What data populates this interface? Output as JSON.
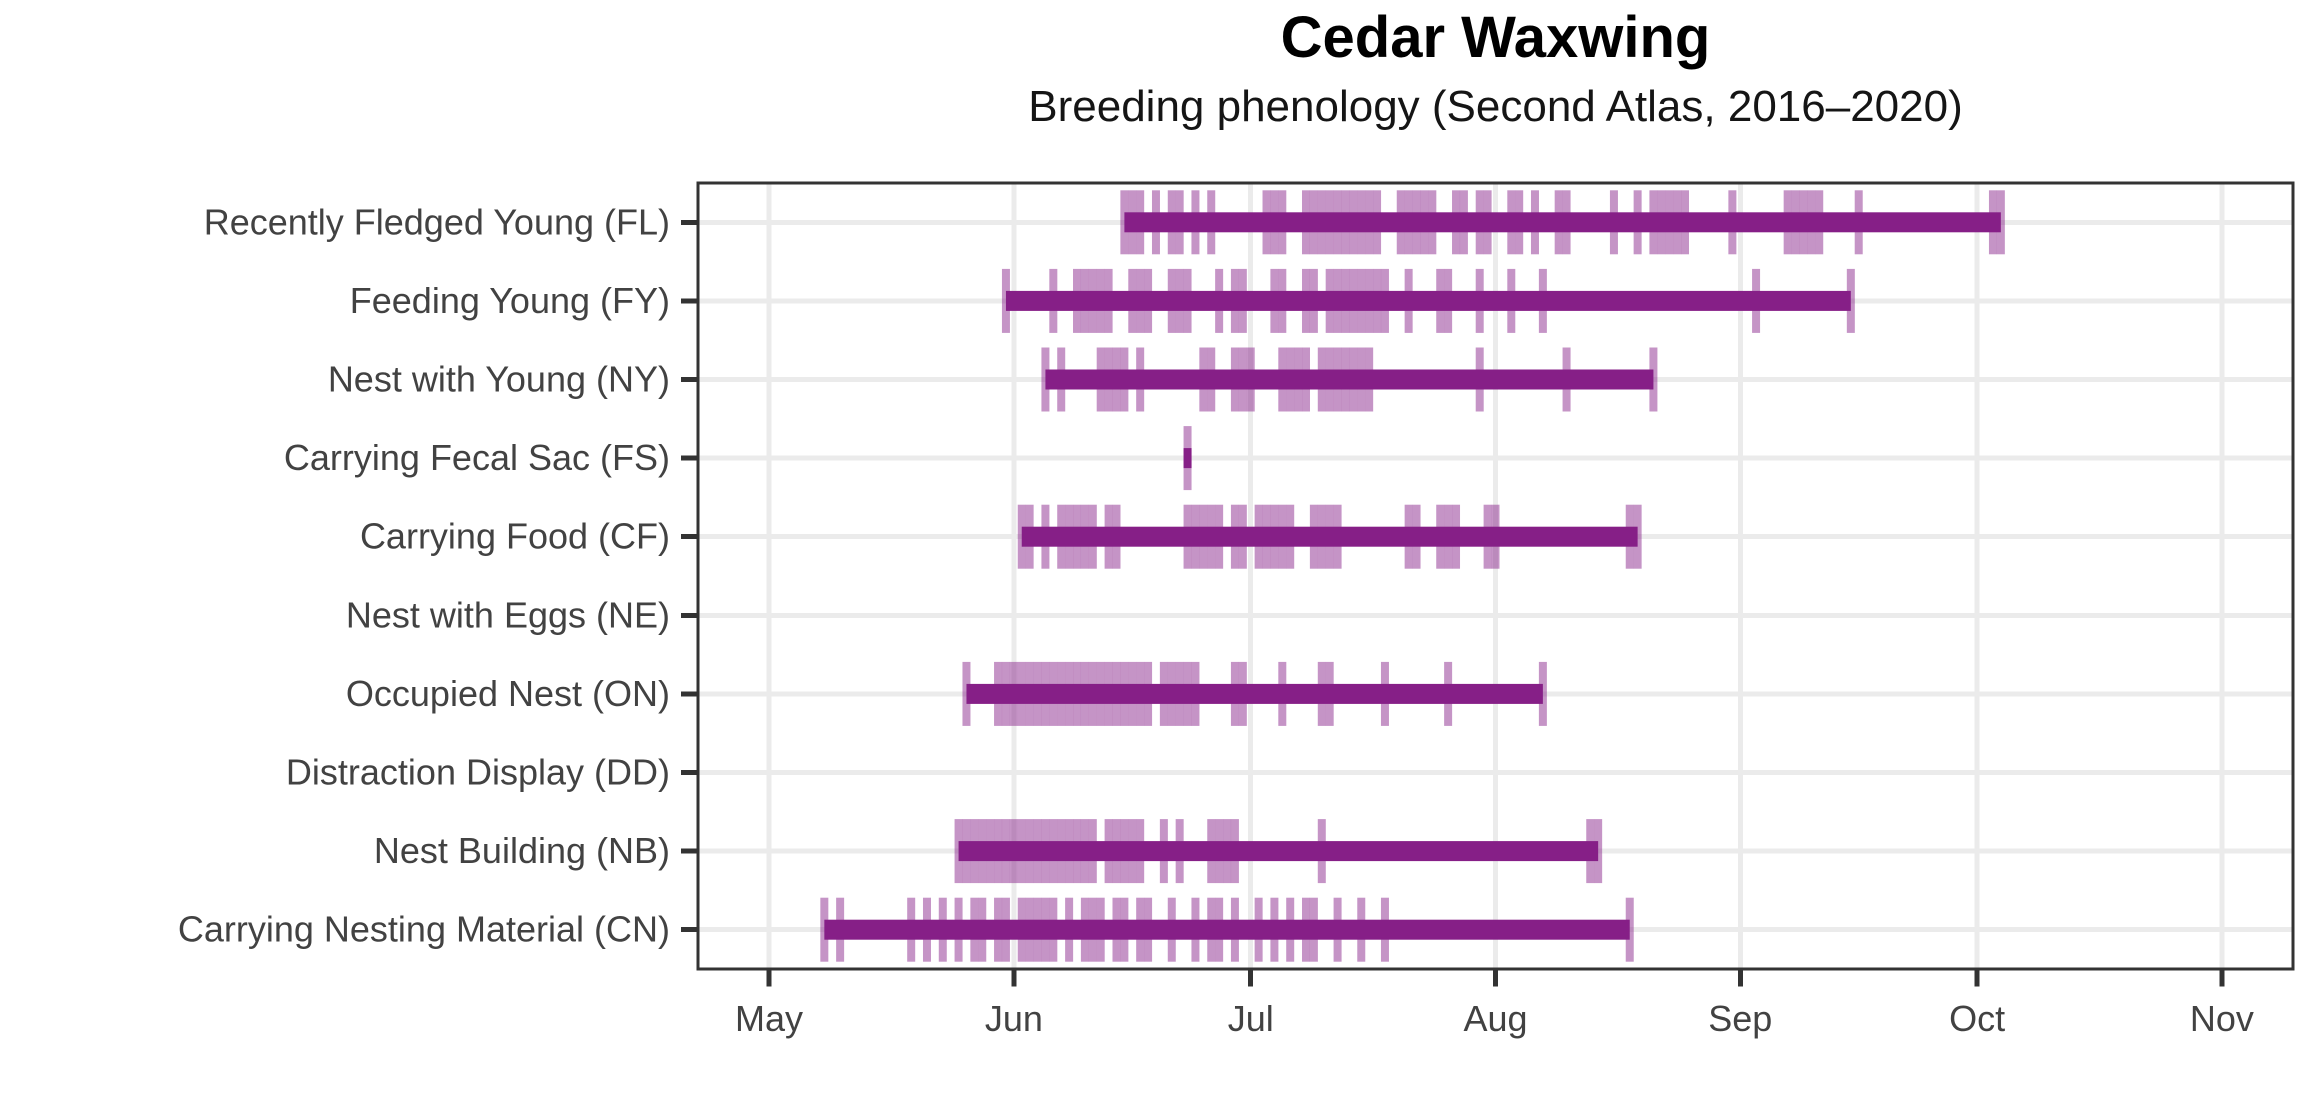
{
  "title": "Cedar Waxwing",
  "subtitle": "Breeding phenology (Second Atlas, 2016–2020)",
  "colors": {
    "bar": "#861F87",
    "tick_alpha": 0.48,
    "grid": "#EBEBEB",
    "panel_border": "#333333",
    "axis_tick": "#333333",
    "axis_text": "#424242",
    "panel_background": "#FFFFFF"
  },
  "chart_data": {
    "type": "bar",
    "subtype": "date-range timeline with individual observation tick marks",
    "title": "Cedar Waxwing",
    "subtitle": "Breeding phenology (Second Atlas, 2016–2020)",
    "xlabel": "",
    "ylabel": "",
    "grid": true,
    "legend": "none",
    "units": "day offsets measured in days since May 1",
    "x_axis": {
      "tick_labels": [
        "May",
        "Jun",
        "Jul",
        "Aug",
        "Sep",
        "Oct",
        "Nov"
      ],
      "tick_days_from_may1": [
        0,
        31,
        61,
        92,
        123,
        153,
        184
      ],
      "domain_days_from_may1": [
        -9,
        193
      ]
    },
    "y_categories": [
      "Recently Fledged Young (FL)",
      "Feeding Young (FY)",
      "Nest with Young (NY)",
      "Carrying Fecal Sac (FS)",
      "Carrying Food (CF)",
      "Nest with Eggs (NE)",
      "Occupied Nest (ON)",
      "Distraction Display (DD)",
      "Nest Building (NB)",
      "Carrying Nesting Material (CN)"
    ],
    "series": [
      {
        "code": "FL",
        "label": "Recently Fledged Young (FL)",
        "start_day": 45,
        "end_day": 156,
        "observations": [
          45,
          46,
          47,
          49,
          51,
          52,
          54,
          56,
          63,
          64,
          65,
          68,
          69,
          70,
          71,
          72,
          73,
          74,
          75,
          76,
          77,
          80,
          81,
          82,
          83,
          84,
          87,
          88,
          90,
          91,
          94,
          95,
          97,
          100,
          101,
          107,
          110,
          112,
          113,
          114,
          115,
          116,
          122,
          129,
          130,
          131,
          132,
          133,
          138,
          155,
          156
        ]
      },
      {
        "code": "FY",
        "label": "Feeding Young (FY)",
        "start_day": 30,
        "end_day": 137,
        "observations": [
          30,
          36,
          39,
          40,
          41,
          42,
          43,
          46,
          47,
          48,
          51,
          52,
          53,
          57,
          59,
          60,
          64,
          65,
          68,
          69,
          71,
          72,
          73,
          74,
          75,
          76,
          77,
          78,
          81,
          85,
          86,
          90,
          94,
          98,
          125,
          137
        ]
      },
      {
        "code": "NY",
        "label": "Nest with Young (NY)",
        "start_day": 35,
        "end_day": 112,
        "observations": [
          35,
          37,
          42,
          43,
          44,
          45,
          47,
          55,
          56,
          59,
          60,
          61,
          65,
          66,
          67,
          68,
          70,
          71,
          72,
          73,
          74,
          75,
          76,
          90,
          101,
          112
        ]
      },
      {
        "code": "FS",
        "label": "Carrying Fecal Sac (FS)",
        "start_day": 53,
        "end_day": 53,
        "observations": [
          53
        ]
      },
      {
        "code": "CF",
        "label": "Carrying Food (CF)",
        "start_day": 32,
        "end_day": 110,
        "observations": [
          32,
          33,
          35,
          37,
          38,
          39,
          40,
          41,
          43,
          44,
          53,
          54,
          55,
          56,
          57,
          59,
          60,
          62,
          63,
          64,
          65,
          66,
          69,
          70,
          71,
          72,
          81,
          82,
          85,
          86,
          87,
          91,
          92,
          109,
          110
        ]
      },
      {
        "code": "NE",
        "label": "Nest with Eggs (NE)",
        "start_day": null,
        "end_day": null,
        "observations": []
      },
      {
        "code": "ON",
        "label": "Occupied Nest (ON)",
        "start_day": 25,
        "end_day": 98,
        "observations": [
          25,
          29,
          30,
          31,
          32,
          33,
          34,
          35,
          36,
          37,
          38,
          39,
          40,
          41,
          42,
          43,
          44,
          45,
          46,
          47,
          48,
          50,
          51,
          52,
          53,
          54,
          59,
          60,
          65,
          70,
          71,
          78,
          86,
          98
        ]
      },
      {
        "code": "DD",
        "label": "Distraction Display (DD)",
        "start_day": null,
        "end_day": null,
        "observations": []
      },
      {
        "code": "NB",
        "label": "Nest Building (NB)",
        "start_day": 24,
        "end_day": 105,
        "observations": [
          24,
          25,
          26,
          27,
          28,
          29,
          30,
          31,
          32,
          33,
          34,
          35,
          36,
          37,
          38,
          39,
          40,
          41,
          43,
          44,
          45,
          46,
          47,
          50,
          52,
          56,
          57,
          58,
          59,
          70,
          104,
          105
        ]
      },
      {
        "code": "CN",
        "label": "Carrying Nesting Material (CN)",
        "start_day": 7,
        "end_day": 109,
        "observations": [
          7,
          9,
          18,
          20,
          22,
          24,
          26,
          27,
          29,
          30,
          32,
          33,
          34,
          35,
          36,
          38,
          40,
          41,
          42,
          44,
          45,
          47,
          48,
          51,
          54,
          56,
          57,
          59,
          62,
          64,
          66,
          68,
          69,
          72,
          75,
          78,
          109
        ]
      }
    ]
  }
}
